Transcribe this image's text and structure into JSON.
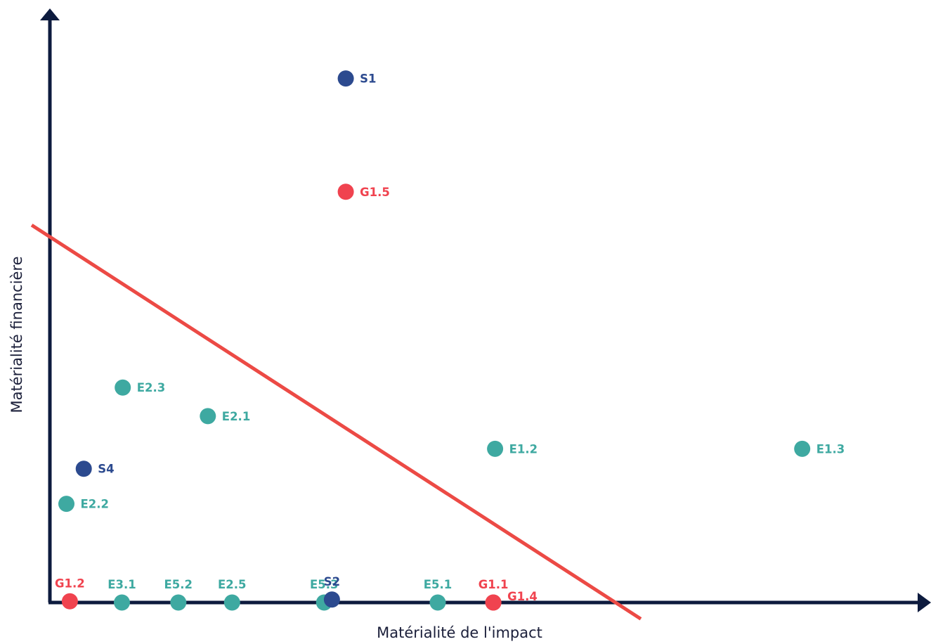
{
  "chart_data": {
    "type": "scatter",
    "title": "",
    "xlabel": "Matérialité de l'impact",
    "ylabel": "Matérialité financière",
    "xlim": [
      0,
      100
    ],
    "ylim": [
      0,
      100
    ],
    "grid": false,
    "legend": "none",
    "colors": {
      "E": "#3ea9a1",
      "S": "#2c4a8f",
      "G": "#f0434f",
      "axis": "#0d1b3e",
      "threshold": "#ec4a45"
    },
    "points": [
      {
        "label": "S1",
        "group": "S",
        "x": 34.1,
        "y": 89.7,
        "label_pos": "right"
      },
      {
        "label": "G1.5",
        "group": "G",
        "x": 34.1,
        "y": 70.3,
        "label_pos": "right"
      },
      {
        "label": "E2.3",
        "group": "E",
        "x": 8.4,
        "y": 36.8,
        "label_pos": "right"
      },
      {
        "label": "E2.1",
        "group": "E",
        "x": 18.2,
        "y": 31.9,
        "label_pos": "right"
      },
      {
        "label": "E1.2",
        "group": "E",
        "x": 51.3,
        "y": 26.3,
        "label_pos": "right"
      },
      {
        "label": "E1.3",
        "group": "E",
        "x": 86.7,
        "y": 26.3,
        "label_pos": "right"
      },
      {
        "label": "S4",
        "group": "S",
        "x": 3.9,
        "y": 22.9,
        "label_pos": "right"
      },
      {
        "label": "E2.2",
        "group": "E",
        "x": 1.9,
        "y": 16.9,
        "label_pos": "right"
      },
      {
        "label": "G1.2",
        "group": "G",
        "x": 2.3,
        "y": 0.2,
        "label_pos": "above"
      },
      {
        "label": "E3.1",
        "group": "E",
        "x": 8.3,
        "y": 0.0,
        "label_pos": "above"
      },
      {
        "label": "E5.2",
        "group": "E",
        "x": 14.8,
        "y": 0.0,
        "label_pos": "above"
      },
      {
        "label": "E2.5",
        "group": "E",
        "x": 21.0,
        "y": 0.0,
        "label_pos": "above"
      },
      {
        "label": "E5.3",
        "group": "E",
        "x": 31.6,
        "y": 0.0,
        "label_pos": "above"
      },
      {
        "label": "S2",
        "group": "S",
        "x": 32.5,
        "y": 0.5,
        "label_pos": "above"
      },
      {
        "label": "E5.1",
        "group": "E",
        "x": 44.7,
        "y": 0.0,
        "label_pos": "above"
      },
      {
        "label": "G1.1",
        "group": "G",
        "x": 51.1,
        "y": 0.0,
        "label_pos": "above"
      },
      {
        "label": "G1.4",
        "group": "G",
        "x": 51.1,
        "y": 0.0,
        "label_pos": "right"
      }
    ],
    "threshold_line": {
      "x": [
        -2.1,
        68.1
      ],
      "y": [
        64.6,
        -2.8
      ]
    }
  }
}
